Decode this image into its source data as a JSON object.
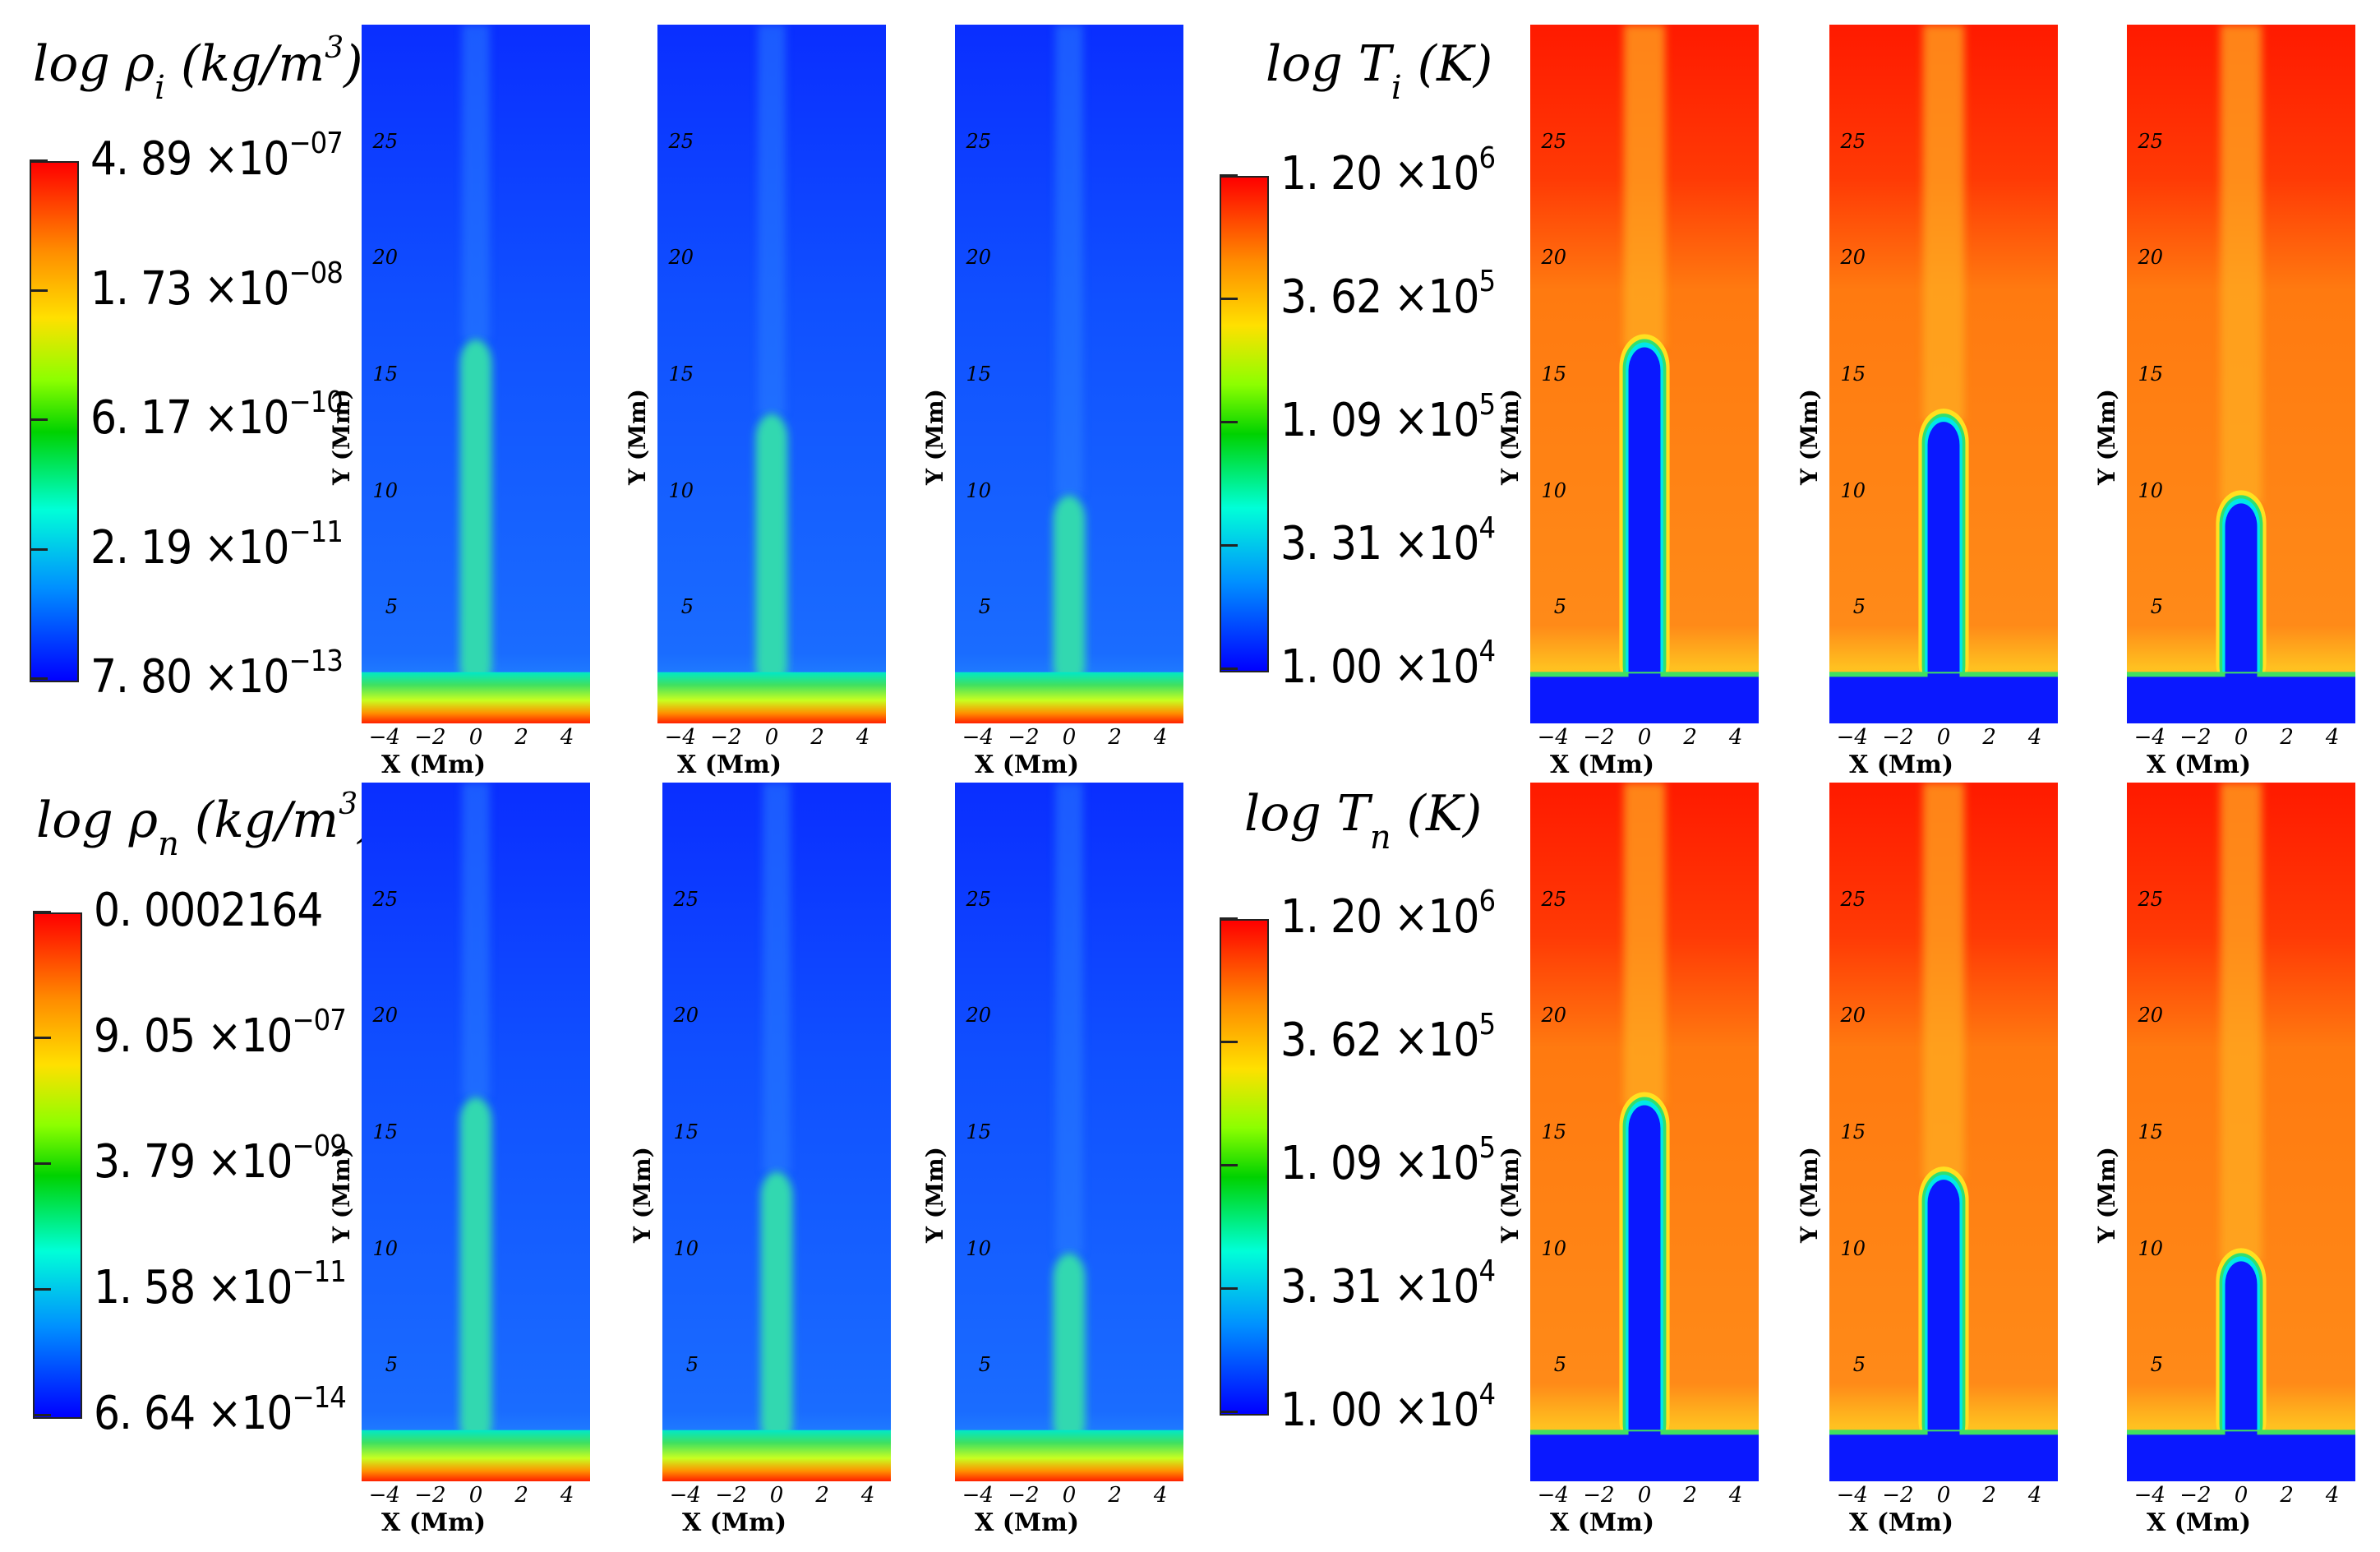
{
  "figure": {
    "titles": {
      "rho_i": {
        "prefix": "log ρ",
        "sub": "i",
        "unit_open": " (kg/m",
        "unit_sup": "3",
        "unit_close": ")"
      },
      "rho_n": {
        "prefix": "log ρ",
        "sub": "n",
        "unit_open": " (kg/m",
        "unit_sup": "3",
        "unit_close": ")"
      },
      "T_i": {
        "prefix": "log T",
        "sub": "i",
        "unit_open": " (K)",
        "unit_sup": "",
        "unit_close": ""
      },
      "T_n": {
        "prefix": "log T",
        "sub": "n",
        "unit_open": " (K)",
        "unit_sup": "",
        "unit_close": ""
      }
    },
    "colorbars": {
      "rho_i": [
        {
          "mant": "4. 89 ×10",
          "exp": "−07"
        },
        {
          "mant": "1. 73 ×10",
          "exp": "−08"
        },
        {
          "mant": "6. 17 ×10",
          "exp": "−10"
        },
        {
          "mant": "2. 19 ×10",
          "exp": "−11"
        },
        {
          "mant": "7. 80 ×10",
          "exp": "−13"
        }
      ],
      "rho_n": [
        {
          "mant": "0. 0002164",
          "exp": ""
        },
        {
          "mant": "9. 05 ×10",
          "exp": "−07"
        },
        {
          "mant": "3. 79 ×10",
          "exp": "−09"
        },
        {
          "mant": "1. 58 ×10",
          "exp": "−11"
        },
        {
          "mant": "6. 64 ×10",
          "exp": "−14"
        }
      ],
      "T_i": [
        {
          "mant": "1. 20 ×10",
          "exp": "6"
        },
        {
          "mant": "3. 62 ×10",
          "exp": "5"
        },
        {
          "mant": "1. 09 ×10",
          "exp": "5"
        },
        {
          "mant": "3. 31 ×10",
          "exp": "4"
        },
        {
          "mant": "1. 00 ×10",
          "exp": "4"
        }
      ],
      "T_n": [
        {
          "mant": "1. 20 ×10",
          "exp": "6"
        },
        {
          "mant": "3. 62 ×10",
          "exp": "5"
        },
        {
          "mant": "1. 09 ×10",
          "exp": "5"
        },
        {
          "mant": "3. 31 ×10",
          "exp": "4"
        },
        {
          "mant": "1. 00 ×10",
          "exp": "4"
        }
      ]
    },
    "axes": {
      "xlabel": "X  (Mm)",
      "ylabel": "Y (Mm)",
      "xticks": [
        "−4",
        "−2",
        "0",
        "2",
        "4"
      ],
      "yticks": [
        "5",
        "10",
        "15",
        "20",
        "25"
      ]
    },
    "colors": {
      "blue": "#0a3cff",
      "red": "#ff1a00",
      "orange": "#ff7a10",
      "cyan": "#00e8c8",
      "green": "#40e060"
    }
  },
  "chart_data": [
    {
      "type": "heatmap",
      "quantity": "log rho_i",
      "row": "top",
      "panel": 1,
      "unit": "kg/m^3",
      "x_range": [
        -5,
        5
      ],
      "y_range": [
        0,
        30
      ],
      "jet_top_y": 16.5,
      "colorbar_range": [
        "7.80e-13",
        "4.89e-07"
      ],
      "xlabel": "X (Mm)",
      "ylabel": "Y (Mm)"
    },
    {
      "type": "heatmap",
      "quantity": "log rho_i",
      "row": "top",
      "panel": 2,
      "unit": "kg/m^3",
      "x_range": [
        -5,
        5
      ],
      "y_range": [
        0,
        30
      ],
      "jet_top_y": 13.3,
      "colorbar_range": [
        "7.80e-13",
        "4.89e-07"
      ],
      "xlabel": "X (Mm)",
      "ylabel": "Y (Mm)"
    },
    {
      "type": "heatmap",
      "quantity": "log rho_i",
      "row": "top",
      "panel": 3,
      "unit": "kg/m^3",
      "x_range": [
        -5,
        5
      ],
      "y_range": [
        0,
        30
      ],
      "jet_top_y": 9.8,
      "colorbar_range": [
        "7.80e-13",
        "4.89e-07"
      ],
      "xlabel": "X (Mm)",
      "ylabel": "Y (Mm)"
    },
    {
      "type": "heatmap",
      "quantity": "log T_i",
      "row": "top",
      "panel": 1,
      "unit": "K",
      "x_range": [
        -5,
        5
      ],
      "y_range": [
        0,
        30
      ],
      "jet_top_y": 16.5,
      "colorbar_range": [
        "1.00e4",
        "1.20e6"
      ],
      "xlabel": "X (Mm)",
      "ylabel": "Y (Mm)"
    },
    {
      "type": "heatmap",
      "quantity": "log T_i",
      "row": "top",
      "panel": 2,
      "unit": "K",
      "x_range": [
        -5,
        5
      ],
      "y_range": [
        0,
        30
      ],
      "jet_top_y": 13.3,
      "colorbar_range": [
        "1.00e4",
        "1.20e6"
      ],
      "xlabel": "X (Mm)",
      "ylabel": "Y (Mm)"
    },
    {
      "type": "heatmap",
      "quantity": "log T_i",
      "row": "top",
      "panel": 3,
      "unit": "K",
      "x_range": [
        -5,
        5
      ],
      "y_range": [
        0,
        30
      ],
      "jet_top_y": 9.8,
      "colorbar_range": [
        "1.00e4",
        "1.20e6"
      ],
      "xlabel": "X (Mm)",
      "ylabel": "Y (Mm)"
    },
    {
      "type": "heatmap",
      "quantity": "log rho_n",
      "row": "bottom",
      "panel": 1,
      "unit": "kg/m^3",
      "x_range": [
        -5,
        5
      ],
      "y_range": [
        0,
        30
      ],
      "jet_top_y": 16.5,
      "colorbar_range": [
        "6.64e-14",
        "0.0002164"
      ],
      "xlabel": "X (Mm)",
      "ylabel": "Y (Mm)"
    },
    {
      "type": "heatmap",
      "quantity": "log rho_n",
      "row": "bottom",
      "panel": 2,
      "unit": "kg/m^3",
      "x_range": [
        -5,
        5
      ],
      "y_range": [
        0,
        30
      ],
      "jet_top_y": 13.3,
      "colorbar_range": [
        "6.64e-14",
        "0.0002164"
      ],
      "xlabel": "X (Mm)",
      "ylabel": "Y (Mm)"
    },
    {
      "type": "heatmap",
      "quantity": "log rho_n",
      "row": "bottom",
      "panel": 3,
      "unit": "kg/m^3",
      "x_range": [
        -5,
        5
      ],
      "y_range": [
        0,
        30
      ],
      "jet_top_y": 9.8,
      "colorbar_range": [
        "6.64e-14",
        "0.0002164"
      ],
      "xlabel": "X (Mm)",
      "ylabel": "Y (Mm)"
    },
    {
      "type": "heatmap",
      "quantity": "log T_n",
      "row": "bottom",
      "panel": 1,
      "unit": "K",
      "x_range": [
        -5,
        5
      ],
      "y_range": [
        0,
        30
      ],
      "jet_top_y": 16.5,
      "colorbar_range": [
        "1.00e4",
        "1.20e6"
      ],
      "xlabel": "X (Mm)",
      "ylabel": "Y (Mm)"
    },
    {
      "type": "heatmap",
      "quantity": "log T_n",
      "row": "bottom",
      "panel": 2,
      "unit": "K",
      "x_range": [
        -5,
        5
      ],
      "y_range": [
        0,
        30
      ],
      "jet_top_y": 13.3,
      "colorbar_range": [
        "1.00e4",
        "1.20e6"
      ],
      "xlabel": "X (Mm)",
      "ylabel": "Y (Mm)"
    },
    {
      "type": "heatmap",
      "quantity": "log T_n",
      "row": "bottom",
      "panel": 3,
      "unit": "K",
      "x_range": [
        -5,
        5
      ],
      "y_range": [
        0,
        30
      ],
      "jet_top_y": 9.8,
      "colorbar_range": [
        "1.00e4",
        "1.20e6"
      ],
      "xlabel": "X (Mm)",
      "ylabel": "Y (Mm)"
    }
  ]
}
